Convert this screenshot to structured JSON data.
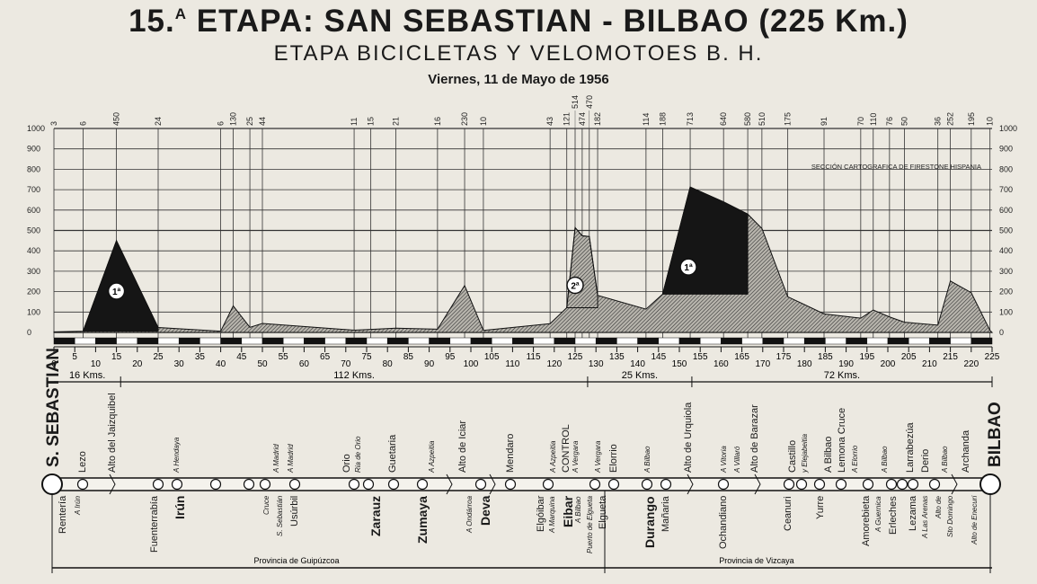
{
  "header": {
    "stage_number": "15.",
    "stage_sup": "A",
    "title": "ETAPA: SAN SEBASTIAN - BILBAO (225 Km.)",
    "subtitle": "ETAPA BICICLETAS Y VELOMOTOES B. H.",
    "date": "Viernes, 11 de Mayo de 1956"
  },
  "credit": "SECCIÓN CARTOGRAFICA DE FIRESTONE HISPANIA",
  "chart_data": {
    "type": "area",
    "xlabel": "",
    "ylabel": "",
    "xlim": [
      0,
      225
    ],
    "ylim": [
      0,
      1000
    ],
    "grid": true,
    "x_ticks": [
      0,
      5,
      10,
      15,
      20,
      25,
      30,
      35,
      40,
      45,
      50,
      55,
      60,
      65,
      70,
      75,
      80,
      85,
      90,
      95,
      100,
      105,
      110,
      115,
      120,
      125,
      130,
      135,
      140,
      145,
      150,
      155,
      160,
      165,
      170,
      175,
      180,
      185,
      190,
      195,
      200,
      205,
      210,
      215,
      220,
      225
    ],
    "y_ticks": [
      0,
      100,
      200,
      300,
      400,
      500,
      600,
      700,
      800,
      900,
      1000
    ],
    "points": [
      {
        "km": 0,
        "alt": 3
      },
      {
        "km": 7,
        "alt": 6
      },
      {
        "km": 15,
        "alt": 450
      },
      {
        "km": 25,
        "alt": 24
      },
      {
        "km": 40,
        "alt": 6
      },
      {
        "km": 43,
        "alt": 130
      },
      {
        "km": 47,
        "alt": 25
      },
      {
        "km": 50,
        "alt": 44
      },
      {
        "km": 72,
        "alt": 11
      },
      {
        "km": 76,
        "alt": 15
      },
      {
        "km": 82,
        "alt": 21
      },
      {
        "km": 92,
        "alt": 16
      },
      {
        "km": 98.5,
        "alt": 230
      },
      {
        "km": 103,
        "alt": 10
      },
      {
        "km": 119,
        "alt": 43
      },
      {
        "km": 123,
        "alt": 121
      },
      {
        "km": 125,
        "alt": 514
      },
      {
        "km": 126.7,
        "alt": 474
      },
      {
        "km": 128.4,
        "alt": 470
      },
      {
        "km": 130.4,
        "alt": 182
      },
      {
        "km": 142,
        "alt": 114
      },
      {
        "km": 146,
        "alt": 188
      },
      {
        "km": 152.6,
        "alt": 713
      },
      {
        "km": 160.6,
        "alt": 640
      },
      {
        "km": 166.4,
        "alt": 580
      },
      {
        "km": 169.8,
        "alt": 510
      },
      {
        "km": 176,
        "alt": 175
      },
      {
        "km": 184.7,
        "alt": 91
      },
      {
        "km": 193.5,
        "alt": 70
      },
      {
        "km": 196.5,
        "alt": 110
      },
      {
        "km": 200.4,
        "alt": 76
      },
      {
        "km": 204,
        "alt": 50
      },
      {
        "km": 212,
        "alt": 36
      },
      {
        "km": 215,
        "alt": 252
      },
      {
        "km": 220,
        "alt": 195
      },
      {
        "km": 224.5,
        "alt": 10
      }
    ],
    "climbs": [
      {
        "label": "1ª",
        "start_km": 7,
        "summit_km": 15,
        "end_km": 25
      },
      {
        "label": "2ª",
        "start_km": 123,
        "summit_km": 125,
        "end_km": 130.4
      },
      {
        "label": "1ª",
        "start_km": 146,
        "summit_km": 152.6,
        "end_km": 166.4
      }
    ],
    "segments": [
      {
        "label": "16 Kms.",
        "from_km": 0,
        "to_km": 16
      },
      {
        "label": "112 Kms.",
        "from_km": 16,
        "to_km": 128
      },
      {
        "label": "25 Kms.",
        "from_km": 128,
        "to_km": 153
      },
      {
        "label": "72 Kms.",
        "from_km": 153,
        "to_km": 225
      }
    ]
  },
  "route": {
    "start": "S. SEBASTIAN",
    "finish": "BILBAO",
    "provinces": [
      "Provincia de Guipúzcoa",
      "Provincia de Vizcaya"
    ],
    "above": [
      "Lezo",
      "Alto del Jaizquibel",
      "A Hendaya",
      "A Madrid",
      "A Madrid",
      "Orio",
      "Ria de Orio",
      "Guetaria",
      "A Azpeitia",
      "Alto de Iciar",
      "Mendaro",
      "A Azpeitia",
      "CONTROL",
      "A Vergara",
      "A Vergara",
      "Elorrio",
      "A Bilbao",
      "Alto de Urquiola",
      "A Vitoria",
      "A Villaró",
      "Alto de Barazar",
      "Castillo",
      "y Elejabeitia",
      "A Bilbao",
      "Lemona Cruce",
      "A Elorrio",
      "A Bilbao",
      "Larrabezúa",
      "Derio",
      "A Bilbao",
      "Archanda"
    ],
    "below": [
      "Rentería",
      "A Irún",
      "Fuenterrabía",
      "Irún",
      "Cruce",
      "S. Sebastián",
      "Usúrbil",
      "Zarauz",
      "Zumaya",
      "A Ondárroa",
      "Deva",
      "Elgóibar",
      "A Marquina",
      "Eibar",
      "A Bilbao",
      "Puerto de Elgueta",
      "Elgueta",
      "Durango",
      "Mañaria",
      "Ochandiano",
      "Ceanuri",
      "Yurre",
      "Amorebieta",
      "A Guernica",
      "Erleches",
      "Lezama",
      "A Las Arenas",
      "Alto de",
      "Sto Domingo",
      "Alto de Enecuri"
    ]
  }
}
